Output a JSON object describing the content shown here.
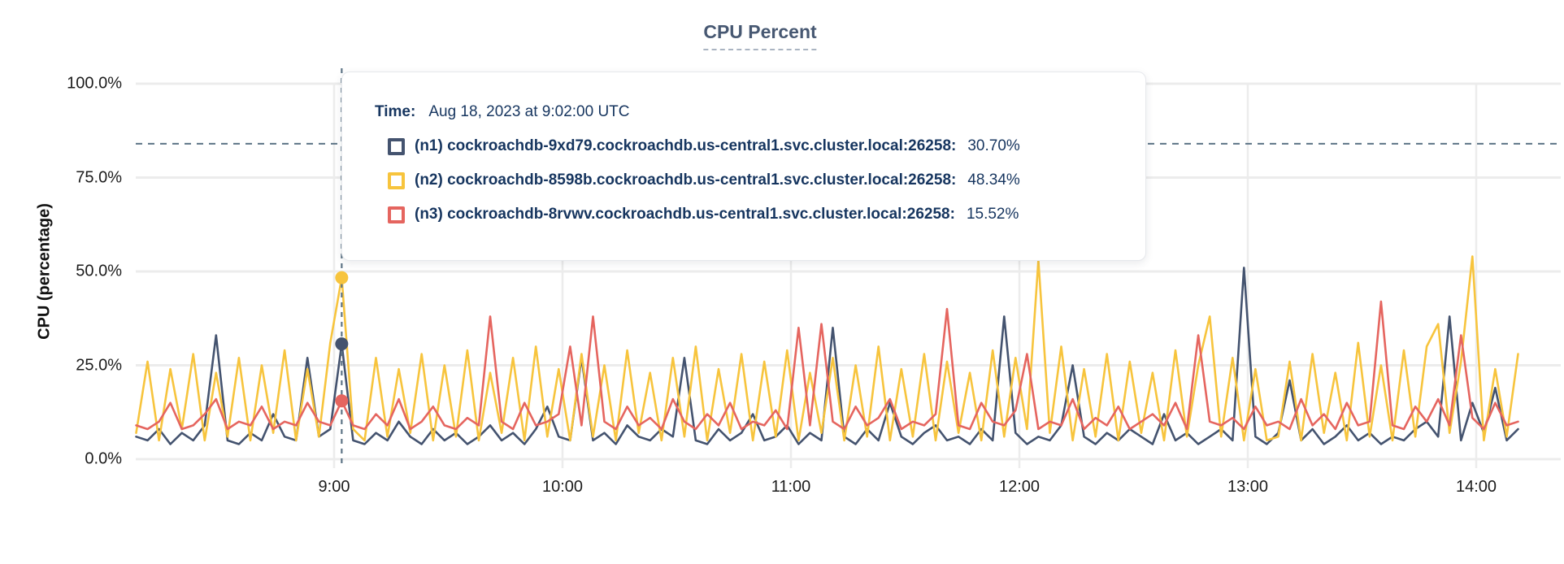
{
  "page": {
    "title": "CPU Percent"
  },
  "axes": {
    "y_axis_title": "CPU (percentage)"
  },
  "tooltip": {
    "time_label": "Time:",
    "time_value": "Aug 18, 2023 at 9:02:00 UTC",
    "rows": [
      {
        "label": "(n1) cockroachdb-9xd79.cockroachdb.us-central1.svc.cluster.local:26258:",
        "value": "30.70%",
        "color": "#44536f"
      },
      {
        "label": "(n2) cockroachdb-8598b.cockroachdb.us-central1.svc.cluster.local:26258:",
        "value": "48.34%",
        "color": "#f7c43d"
      },
      {
        "label": "(n3) cockroachdb-8rvwv.cockroachdb.us-central1.svc.cluster.local:26258:",
        "value": "15.52%",
        "color": "#e5655f"
      }
    ]
  },
  "colors": {
    "grid": "#ececec",
    "dashed_guides": "#5d7486",
    "title_text": "#475872",
    "tooltip_text": "#16355f"
  },
  "chart_data": {
    "type": "line",
    "title": "CPU Percent",
    "xlabel": "",
    "ylabel": "CPU (percentage)",
    "ylim": [
      0,
      100
    ],
    "grid": true,
    "legend_position": "tooltip-overlay",
    "y_ticks": [
      {
        "value": 0,
        "label": "0.0%"
      },
      {
        "value": 25,
        "label": "25.0%"
      },
      {
        "value": 50,
        "label": "50.0%"
      },
      {
        "value": 75,
        "label": "75.0%"
      },
      {
        "value": 100,
        "label": "100.0%"
      }
    ],
    "x_ticks": [
      {
        "hour": 9,
        "label": "9:00"
      },
      {
        "hour": 10,
        "label": "10:00"
      },
      {
        "hour": 11,
        "label": "11:00"
      },
      {
        "hour": 12,
        "label": "12:00"
      },
      {
        "hour": 13,
        "label": "13:00"
      },
      {
        "hour": 14,
        "label": "14:00"
      }
    ],
    "x_start_hour": 8.1333,
    "x_step_hours": 0.05,
    "x_axis_range_hours": [
      8.05,
      14.35
    ],
    "threshold_dashed_line_percent": 84,
    "crosshair": {
      "time_hour": 9.0333,
      "time_label": "Aug 18, 2023 at 9:02:00 UTC",
      "points": [
        {
          "series_index": 0,
          "value": 30.7
        },
        {
          "series_index": 1,
          "value": 48.34
        },
        {
          "series_index": 2,
          "value": 15.52
        }
      ]
    },
    "series": [
      {
        "name": "(n1) cockroachdb-9xd79.cockroachdb.us-central1.svc.cluster.local:26258",
        "color": "#44536f",
        "values": [
          6,
          5,
          8,
          4,
          7,
          5,
          9,
          33,
          5,
          4,
          7,
          5,
          12,
          6,
          5,
          27,
          6,
          8,
          30.7,
          5,
          4,
          7,
          5,
          10,
          6,
          4,
          8,
          5,
          7,
          4,
          6,
          9,
          5,
          7,
          4,
          8,
          14,
          6,
          5,
          27,
          5,
          7,
          4,
          9,
          6,
          5,
          8,
          6,
          27,
          5,
          4,
          8,
          5,
          7,
          12,
          5,
          6,
          9,
          4,
          7,
          5,
          35,
          6,
          4,
          8,
          5,
          15,
          6,
          4,
          7,
          9,
          5,
          6,
          4,
          8,
          5,
          38,
          7,
          4,
          6,
          5,
          9,
          25,
          6,
          4,
          7,
          5,
          8,
          6,
          4,
          12,
          5,
          7,
          4,
          6,
          8,
          5,
          51,
          6,
          4,
          7,
          21,
          5,
          8,
          4,
          6,
          9,
          5,
          7,
          4,
          6,
          5,
          8,
          10,
          6,
          38,
          5,
          15,
          7,
          19,
          5,
          8
        ]
      },
      {
        "name": "(n2) cockroachdb-8598b.cockroachdb.us-central1.svc.cluster.local:26258",
        "color": "#f7c43d",
        "values": [
          7,
          26,
          5,
          24,
          8,
          28,
          5,
          23,
          6,
          27,
          5,
          25,
          7,
          29,
          5,
          24,
          6,
          31,
          48.34,
          8,
          5,
          27,
          6,
          24,
          7,
          28,
          5,
          25,
          6,
          29,
          5,
          23,
          7,
          27,
          5,
          30,
          6,
          24,
          5,
          28,
          6,
          25,
          5,
          29,
          7,
          23,
          5,
          27,
          6,
          30,
          5,
          24,
          7,
          28,
          5,
          26,
          6,
          29,
          5,
          23,
          7,
          27,
          5,
          25,
          6,
          30,
          5,
          24,
          6,
          28,
          5,
          26,
          7,
          23,
          5,
          29,
          6,
          27,
          8,
          53,
          7,
          30,
          5,
          24,
          6,
          28,
          5,
          26,
          7,
          23,
          5,
          29,
          6,
          25,
          38,
          6,
          27,
          5,
          24,
          5,
          6,
          26,
          5,
          28,
          7,
          23,
          5,
          31,
          6,
          25,
          5,
          29,
          6,
          30,
          36,
          7,
          26,
          54,
          5,
          24,
          6,
          28
        ]
      },
      {
        "name": "(n3) cockroachdb-8rvwv.cockroachdb.us-central1.svc.cluster.local:26258",
        "color": "#e5655f",
        "values": [
          9,
          8,
          10,
          15,
          8,
          9,
          12,
          16,
          8,
          10,
          9,
          14,
          8,
          10,
          9,
          15,
          10,
          9,
          15.52,
          9,
          8,
          12,
          9,
          16,
          8,
          10,
          14,
          9,
          8,
          11,
          9,
          38,
          10,
          8,
          15,
          9,
          10,
          12,
          30,
          9,
          38,
          10,
          8,
          14,
          9,
          11,
          8,
          16,
          10,
          8,
          12,
          9,
          15,
          8,
          10,
          9,
          13,
          8,
          35,
          9,
          36,
          10,
          8,
          14,
          9,
          11,
          16,
          8,
          10,
          9,
          12,
          40,
          9,
          8,
          15,
          10,
          9,
          13,
          28,
          8,
          10,
          9,
          16,
          8,
          11,
          9,
          14,
          8,
          10,
          12,
          9,
          15,
          8,
          33,
          10,
          9,
          11,
          8,
          14,
          9,
          10,
          8,
          16,
          9,
          12,
          8,
          15,
          9,
          10,
          42,
          9,
          8,
          14,
          10,
          16,
          9,
          33,
          11,
          8,
          15,
          9,
          10
        ]
      }
    ]
  }
}
